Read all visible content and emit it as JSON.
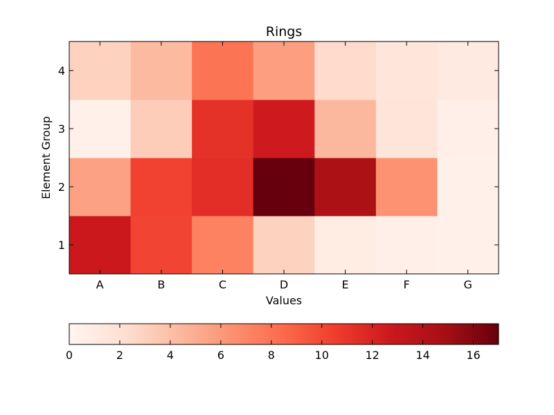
{
  "chart_data": {
    "type": "heatmap",
    "title": "Rings",
    "xlabel": "Values",
    "ylabel": "Element Group",
    "x_categories": [
      "A",
      "B",
      "C",
      "D",
      "E",
      "F",
      "G"
    ],
    "y_categories": [
      "1",
      "2",
      "3",
      "4"
    ],
    "values": [
      [
        12.8,
        10.2,
        7.2,
        2.9,
        0.9,
        0.6,
        0.5
      ],
      [
        5.6,
        10.3,
        11.4,
        17.0,
        14.5,
        6.4,
        0.5
      ],
      [
        0.5,
        3.2,
        11.2,
        12.6,
        4.4,
        1.6,
        0.6
      ],
      [
        2.9,
        4.3,
        7.9,
        5.7,
        2.4,
        1.5,
        1.1
      ]
    ],
    "colorscale": "Reds",
    "colorbar": {
      "range": [
        0,
        17
      ],
      "ticks": [
        "0",
        "2",
        "4",
        "6",
        "8",
        "10",
        "12",
        "14",
        "16"
      ],
      "position": "bottom"
    },
    "grid": false
  }
}
